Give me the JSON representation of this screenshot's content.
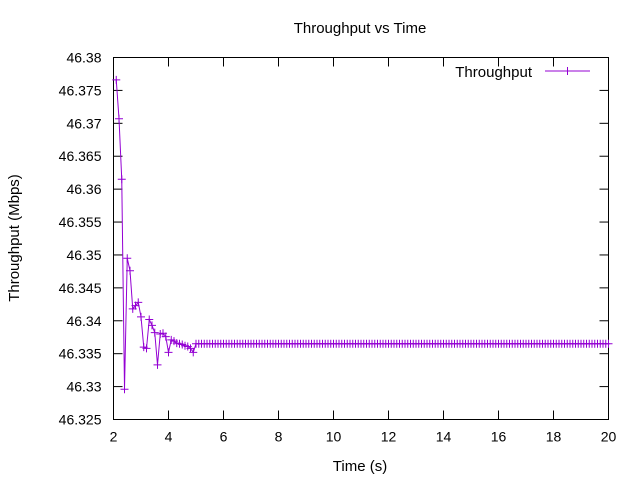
{
  "chart_data": {
    "type": "line",
    "title": "Throughput vs Time",
    "xlabel": "Time (s)",
    "ylabel": "Throughput (Mbps)",
    "xlim": [
      2,
      20
    ],
    "ylim": [
      46.325,
      46.38
    ],
    "x_ticks": [
      2,
      4,
      6,
      8,
      10,
      12,
      14,
      16,
      18,
      20
    ],
    "y_ticks": [
      "46.325",
      "46.33",
      "46.335",
      "46.34",
      "46.345",
      "46.35",
      "46.355",
      "46.36",
      "46.365",
      "46.37",
      "46.375",
      "46.38"
    ],
    "grid": false,
    "legend_position": "top-right",
    "series": [
      {
        "name": "Throughput",
        "color": "#9400d3",
        "marker": "plus",
        "points": [
          [
            2.1,
            46.3766
          ],
          [
            2.2,
            46.3707
          ],
          [
            2.3,
            46.3615
          ],
          [
            2.4,
            46.3296
          ],
          [
            2.5,
            46.3495
          ],
          [
            2.6,
            46.3476
          ],
          [
            2.7,
            46.3418
          ],
          [
            2.8,
            46.3423
          ],
          [
            2.9,
            46.3428
          ],
          [
            3.0,
            46.3406
          ],
          [
            3.1,
            46.336
          ],
          [
            3.2,
            46.3358
          ],
          [
            3.3,
            46.3402
          ],
          [
            3.4,
            46.3393
          ],
          [
            3.5,
            46.3382
          ],
          [
            3.6,
            46.3333
          ],
          [
            3.7,
            46.338
          ],
          [
            3.8,
            46.3381
          ],
          [
            3.9,
            46.3376
          ],
          [
            4.0,
            46.3352
          ],
          [
            4.1,
            46.3371
          ],
          [
            4.2,
            46.3369
          ],
          [
            4.3,
            46.3366
          ],
          [
            4.4,
            46.3365
          ],
          [
            4.5,
            46.3364
          ],
          [
            4.6,
            46.3362
          ],
          [
            4.7,
            46.3361
          ],
          [
            4.8,
            46.3358
          ],
          [
            4.9,
            46.3352
          ],
          [
            5.0,
            46.3365
          ]
        ],
        "steady_value": 46.3365,
        "steady_from": 5.0,
        "steady_to": 20.0,
        "steady_step": 0.1
      }
    ]
  }
}
